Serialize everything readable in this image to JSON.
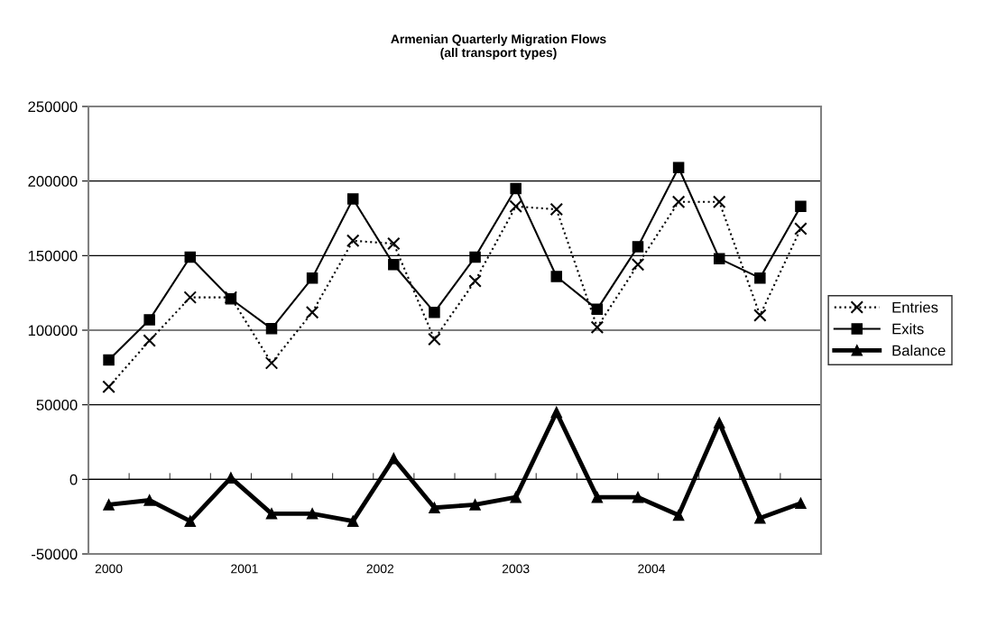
{
  "chart_data": {
    "type": "line",
    "title": "Armenian Quarterly Migration Flows\n(all transport types)",
    "x": [
      2000,
      2000.3,
      2000.6,
      2000.9,
      2001.2,
      2001.5,
      2001.8,
      2002.1,
      2002.4,
      2002.7,
      2003.0,
      2003.3,
      2003.6,
      2003.9,
      2004.2,
      2004.5,
      2004.8,
      2005.1
    ],
    "series": [
      {
        "name": "Entries",
        "color": "#000000",
        "marker": "cross",
        "line_style": "dotted",
        "values": [
          62000,
          93000,
          122000,
          122000,
          78000,
          112000,
          160000,
          158000,
          94000,
          133000,
          183000,
          181000,
          102000,
          144000,
          186000,
          186000,
          110000,
          168000
        ]
      },
      {
        "name": "Exits",
        "color": "#000000",
        "marker": "square",
        "line_style": "solid",
        "values": [
          80000,
          107000,
          149000,
          121000,
          101000,
          135000,
          188000,
          144000,
          112000,
          149000,
          195000,
          136000,
          114000,
          156000,
          209000,
          148000,
          135000,
          183000
        ]
      },
      {
        "name": "Balance",
        "color": "#000000",
        "marker": "triangle",
        "line_style": "solid",
        "values": [
          -17000,
          -14000,
          -28000,
          1000,
          -23000,
          -23000,
          -28000,
          14000,
          -19000,
          -17000,
          -12000,
          45000,
          -12000,
          -12000,
          -24000,
          38000,
          -26000,
          -16000
        ]
      }
    ],
    "xlim": [
      1999.85,
      2005.25
    ],
    "xticks": [
      2000,
      2001,
      2002,
      2003,
      2004,
      {
        "value": 2000.15,
        "label": null
      },
      {
        "value": 2000.45,
        "label": null
      },
      {
        "value": 2000.75,
        "label": null
      },
      {
        "value": 2001.05,
        "label": null
      },
      {
        "value": 2001.35,
        "label": null
      },
      {
        "value": 2001.65,
        "label": null
      },
      {
        "value": 2001.95,
        "label": null
      },
      {
        "value": 2002.25,
        "label": null
      },
      {
        "value": 2002.55,
        "label": null
      },
      {
        "value": 2002.85,
        "label": null
      },
      {
        "value": 2003.15,
        "label": null
      },
      {
        "value": 2003.45,
        "label": null
      },
      {
        "value": 2003.75,
        "label": null
      },
      {
        "value": 2004.05,
        "label": null
      },
      {
        "value": 2004.35,
        "label": null
      },
      {
        "value": 2004.65,
        "label": null
      },
      {
        "value": 2004.95,
        "label": null
      }
    ],
    "ylim": [
      -50000,
      250000
    ],
    "yticks": [
      -50000,
      0,
      50000,
      100000,
      150000,
      200000,
      250000
    ],
    "grid": "y",
    "legend": "right"
  }
}
